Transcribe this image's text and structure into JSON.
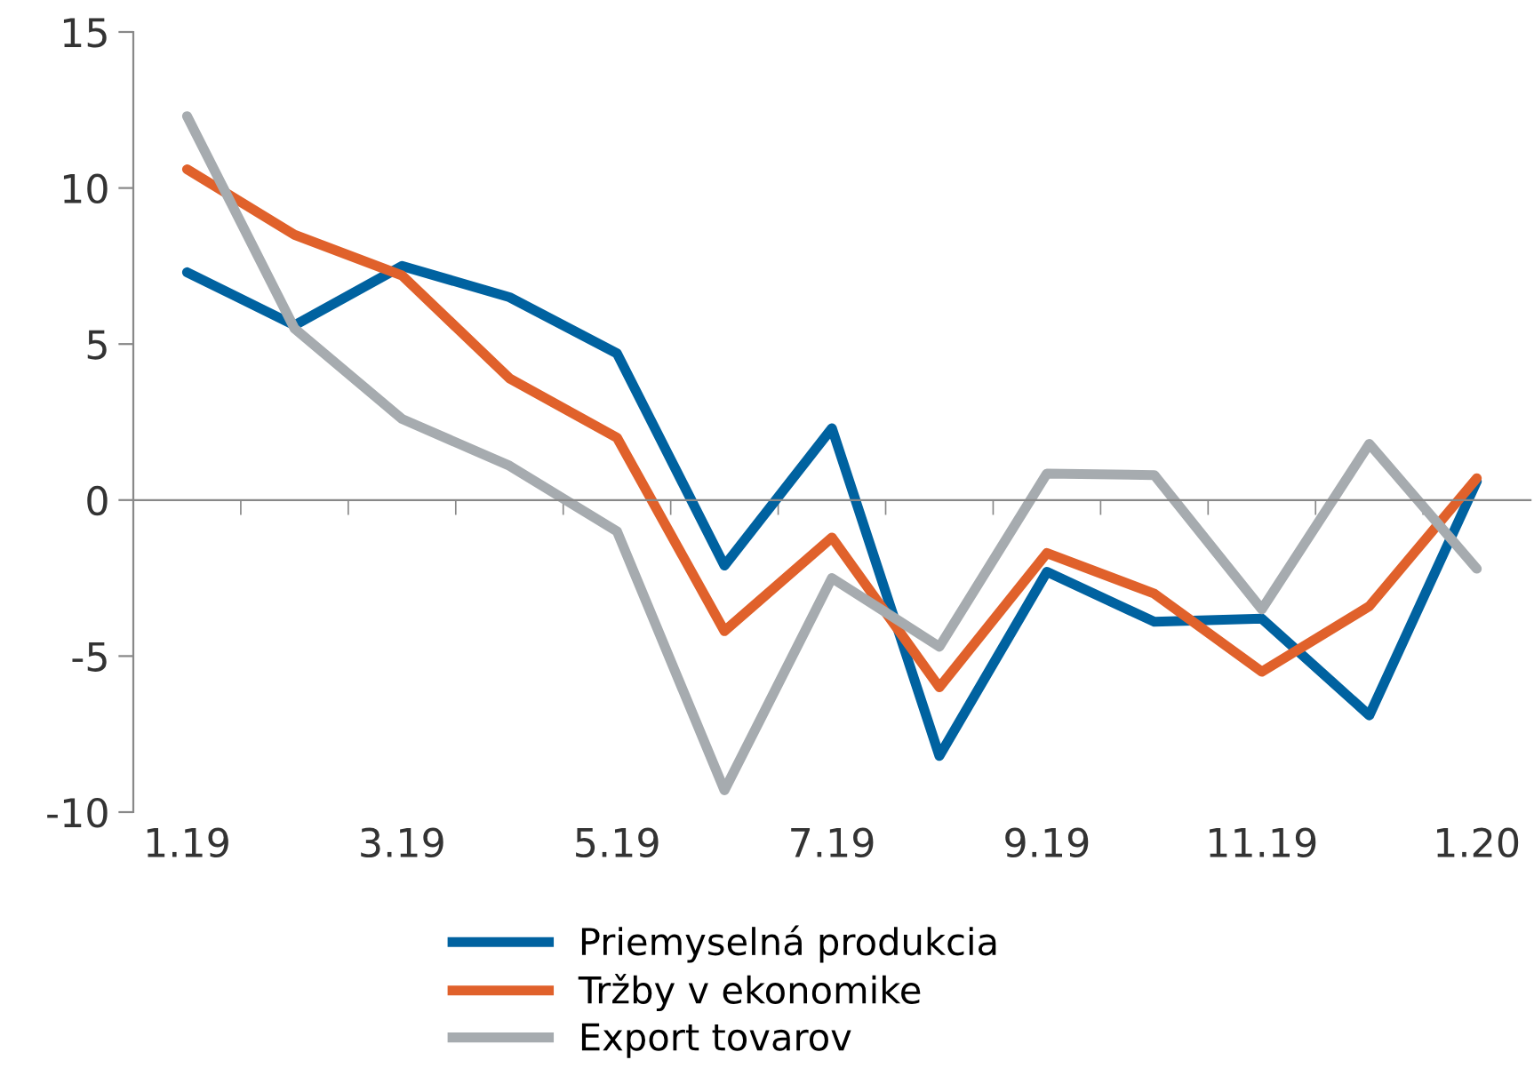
{
  "chart_data": {
    "type": "line",
    "categories": [
      "1.19",
      null,
      "3.19",
      null,
      "5.19",
      null,
      "7.19",
      null,
      "9.19",
      null,
      "11.19",
      null,
      "1.20"
    ],
    "series": [
      {
        "name": "Priemyselná produkcia",
        "color": "#0062a0",
        "values": [
          7.3,
          5.6,
          7.5,
          6.5,
          4.7,
          -2.1,
          2.3,
          -8.2,
          -2.3,
          -3.9,
          -3.8,
          -6.9,
          0.6
        ]
      },
      {
        "name": "Tržby v ekonomike",
        "color": "#e0612b",
        "values": [
          10.6,
          8.5,
          7.2,
          3.9,
          2.0,
          -4.2,
          -1.2,
          -6.0,
          -1.7,
          -3.0,
          -5.5,
          -3.4,
          0.7
        ]
      },
      {
        "name": "Export tovarov",
        "color": "#a6abaf",
        "values": [
          12.3,
          5.5,
          2.6,
          1.1,
          -1.0,
          -9.3,
          -2.5,
          -4.7,
          0.85,
          0.8,
          -3.5,
          1.8,
          -2.2
        ]
      }
    ],
    "ylim": [
      -10,
      15
    ],
    "yticks": [
      -10,
      -5,
      0,
      5,
      10,
      15
    ],
    "legend": "bottom",
    "marker": "none",
    "line_style": "solid"
  }
}
